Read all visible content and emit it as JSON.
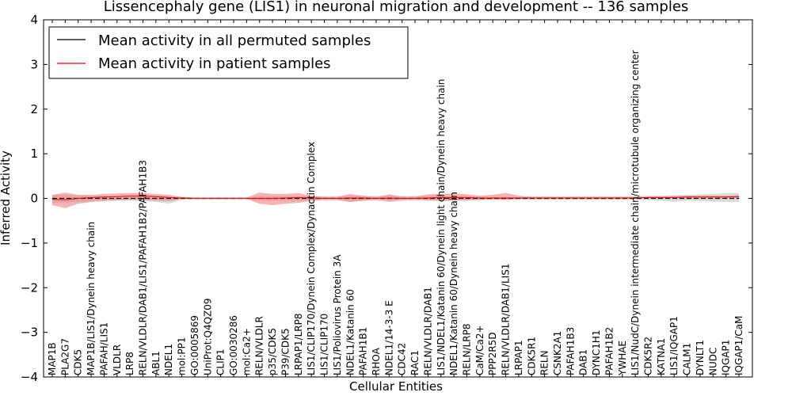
{
  "chart_data": {
    "type": "line",
    "title": "Lissencephaly gene (LIS1) in neuronal migration and development -- 136 samples",
    "xlabel": "Cellular Entities",
    "ylabel": "Inferred Activity",
    "ylim": [
      -4,
      4
    ],
    "yticks": [
      "4",
      "3",
      "2",
      "1",
      "0",
      "−1",
      "−2",
      "−3",
      "−4"
    ],
    "grid": false,
    "legend_position": "top-left",
    "categories": [
      "MAP1B",
      "PLA2G7",
      "CDK5",
      "MAP1B/LIS1/Dynein heavy chain",
      "PAFAH/LIS1",
      "VLDLR",
      "LRP8",
      "RELN/VLDLR/DAB1/LIS1/PAFAH1B2/PAFAH1B3",
      "ABL1",
      "NDEL1",
      "mol:PP1",
      "GO:0005869",
      "UniProt:Q4QZ09",
      "CLIP1",
      "GO:0030286",
      "mol:Ca2+",
      "RELN/VLDLR",
      "p35/CDK5",
      "P39/CDK5",
      "LRPAP1/LRP8",
      "LIS1/CLIP170/Dynein Complex/Dynactin Complex",
      "LIS1/CLIP170",
      "LIS1/Poliovirus Protein 3A",
      "NDEL1/Katanin 60",
      "PAFAH1B1",
      "RHOA",
      "NDEL1/14-3-3 E",
      "CDC42",
      "RAC1",
      "RELN/VLDLR/DAB1",
      "LIS1/NDEL1/Katanin 60/Dynein light chain/Dynein heavy chain",
      "NDEL1/Katanin 60/Dynein heavy chain",
      "RELN/LRP8",
      "CaM/Ca2+",
      "PPP2R5D",
      "RELN/VLDLR/DAB1/LIS1",
      "LRPAP1",
      "CDK5R1",
      "RELN",
      "CSNK2A1",
      "PAFAH1B3",
      "DAB1",
      "DYNC1H1",
      "PAFAH1B2",
      "YWHAE",
      "LIS1/NudC/Dynein intermediate chain/microtubule organizing center",
      "CDK5R2",
      "KATNA1",
      "LIS1/IQGAP1",
      "CALM1",
      "DYNLT1",
      "NUDC",
      "IQGAP1",
      "IQGAP1/CaM"
    ],
    "series": [
      {
        "name": "Mean activity in all permuted samples",
        "color": "#000000",
        "band_color": "#bbbbbb",
        "values": [
          0.0,
          0.0,
          0.0,
          0.0,
          0.0,
          0.0,
          0.0,
          0.0,
          0.0,
          0.0,
          0.0,
          0.0,
          0.0,
          0.0,
          0.0,
          0.0,
          0.0,
          0.0,
          0.0,
          0.0,
          0.0,
          0.0,
          0.0,
          0.0,
          0.0,
          0.0,
          0.0,
          0.0,
          0.0,
          0.0,
          0.0,
          0.0,
          0.0,
          0.0,
          0.0,
          0.0,
          0.0,
          0.0,
          0.0,
          0.0,
          0.0,
          0.0,
          0.0,
          0.0,
          0.0,
          0.0,
          0.0,
          0.0,
          0.0,
          0.0,
          0.0,
          0.0,
          0.0,
          0.0
        ],
        "lower": [
          -0.1,
          -0.1,
          -0.08,
          -0.06,
          -0.05,
          -0.05,
          -0.05,
          -0.06,
          -0.08,
          -0.12,
          -0.03,
          -0.02,
          -0.02,
          -0.02,
          -0.02,
          -0.02,
          -0.05,
          -0.05,
          -0.05,
          -0.05,
          -0.05,
          -0.05,
          -0.05,
          -0.08,
          -0.05,
          -0.05,
          -0.08,
          -0.06,
          -0.05,
          -0.05,
          -0.05,
          -0.05,
          -0.05,
          -0.04,
          -0.03,
          -0.03,
          -0.03,
          -0.03,
          -0.03,
          -0.03,
          -0.03,
          -0.03,
          -0.03,
          -0.03,
          -0.03,
          -0.03,
          -0.03,
          -0.05,
          -0.08,
          -0.05,
          -0.06,
          -0.07,
          -0.08,
          -0.08
        ],
        "upper": [
          0.08,
          0.08,
          0.06,
          0.05,
          0.05,
          0.05,
          0.05,
          0.06,
          0.06,
          0.05,
          0.03,
          0.02,
          0.02,
          0.02,
          0.02,
          0.02,
          0.05,
          0.05,
          0.05,
          0.05,
          0.05,
          0.05,
          0.05,
          0.06,
          0.05,
          0.05,
          0.06,
          0.05,
          0.05,
          0.05,
          0.05,
          0.05,
          0.05,
          0.04,
          0.03,
          0.03,
          0.03,
          0.03,
          0.03,
          0.03,
          0.03,
          0.03,
          0.03,
          0.03,
          0.03,
          0.03,
          0.03,
          0.05,
          0.07,
          0.08,
          0.09,
          0.1,
          0.12,
          0.12
        ]
      },
      {
        "name": "Mean activity in patient samples",
        "color": "#ff0000",
        "band_color": "#f08080",
        "values": [
          -0.02,
          -0.03,
          0.0,
          0.02,
          0.03,
          0.04,
          0.05,
          0.05,
          0.04,
          0.02,
          0.01,
          0.0,
          0.0,
          0.0,
          0.0,
          0.0,
          0.0,
          0.0,
          0.01,
          0.02,
          0.01,
          0.0,
          0.0,
          0.01,
          0.01,
          0.0,
          0.01,
          0.0,
          0.0,
          0.01,
          0.02,
          0.02,
          0.02,
          0.01,
          0.01,
          0.01,
          0.01,
          0.01,
          0.01,
          0.01,
          0.01,
          0.01,
          0.01,
          0.01,
          0.01,
          0.01,
          0.02,
          0.02,
          0.02,
          0.03,
          0.03,
          0.03,
          0.03,
          0.04
        ],
        "lower": [
          -0.15,
          -0.22,
          -0.12,
          -0.08,
          -0.06,
          -0.04,
          -0.03,
          -0.04,
          -0.05,
          -0.06,
          -0.01,
          -0.01,
          -0.01,
          -0.01,
          -0.01,
          -0.01,
          -0.12,
          -0.15,
          -0.12,
          -0.1,
          -0.05,
          -0.02,
          -0.02,
          -0.08,
          -0.05,
          -0.02,
          -0.06,
          -0.03,
          -0.02,
          -0.04,
          -0.06,
          -0.05,
          -0.04,
          -0.03,
          -0.02,
          -0.03,
          -0.01,
          0.0,
          0.0,
          0.0,
          0.0,
          0.0,
          0.0,
          0.0,
          0.0,
          0.0,
          0.0,
          0.0,
          0.0,
          0.0,
          0.0,
          0.0,
          0.0,
          0.0
        ],
        "upper": [
          0.08,
          0.13,
          0.08,
          0.08,
          0.1,
          0.11,
          0.12,
          0.12,
          0.1,
          0.08,
          0.03,
          0.02,
          0.02,
          0.02,
          0.02,
          0.02,
          0.13,
          0.1,
          0.1,
          0.12,
          0.06,
          0.03,
          0.03,
          0.1,
          0.06,
          0.03,
          0.09,
          0.04,
          0.04,
          0.09,
          0.1,
          0.11,
          0.09,
          0.06,
          0.08,
          0.12,
          0.06,
          0.04,
          0.04,
          0.04,
          0.04,
          0.04,
          0.04,
          0.04,
          0.04,
          0.04,
          0.05,
          0.05,
          0.05,
          0.06,
          0.06,
          0.06,
          0.06,
          0.07
        ]
      }
    ]
  }
}
